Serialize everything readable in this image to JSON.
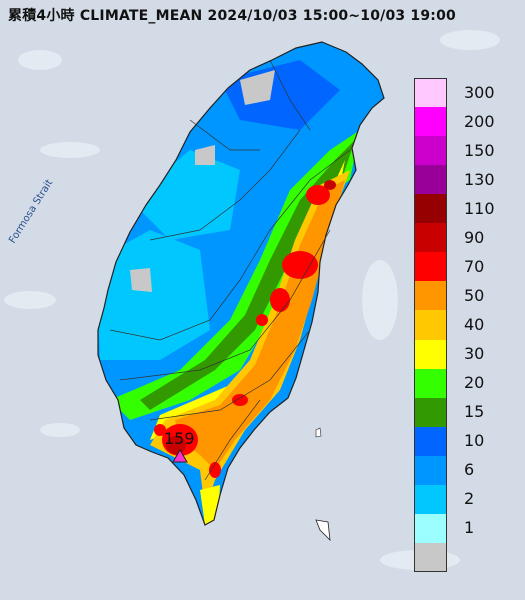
{
  "title": "累積4小時 CLIMATE_MEAN 2024/10/03 15:00~10/03 19:00",
  "strait_label": "Formosa Strait",
  "max_marker": {
    "value": "159"
  },
  "legend": {
    "entries": [
      {
        "label": "300",
        "color": "#ffc8ff"
      },
      {
        "label": "200",
        "color": "#ff00ff"
      },
      {
        "label": "150",
        "color": "#cc00cc"
      },
      {
        "label": "130",
        "color": "#990099"
      },
      {
        "label": "110",
        "color": "#960000"
      },
      {
        "label": "90",
        "color": "#c80000"
      },
      {
        "label": "70",
        "color": "#ff0000"
      },
      {
        "label": "50",
        "color": "#ff9600"
      },
      {
        "label": "40",
        "color": "#ffc800"
      },
      {
        "label": "30",
        "color": "#ffff00"
      },
      {
        "label": "20",
        "color": "#33ff00"
      },
      {
        "label": "15",
        "color": "#339900"
      },
      {
        "label": "10",
        "color": "#0066ff"
      },
      {
        "label": "6",
        "color": "#0096ff"
      },
      {
        "label": "2",
        "color": "#00c8ff"
      },
      {
        "label": "1",
        "color": "#9bffff"
      },
      {
        "label": "",
        "color": "#c8c8c8"
      }
    ]
  },
  "colors": {
    "sea": "#d3dbe6",
    "border": "#222222",
    "county_line": "#333333"
  }
}
